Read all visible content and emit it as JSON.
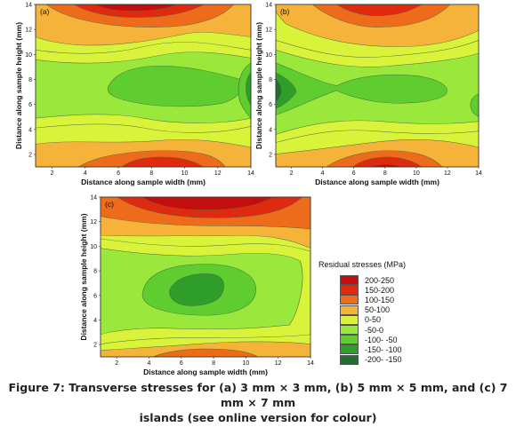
{
  "chart_data": [
    {
      "type": "heatmap",
      "panel_label": "(a)",
      "xlabel": "Distance along sample width (mm)",
      "ylabel": "Distance along sample height (mm)",
      "x_ticks": [
        2,
        4,
        6,
        8,
        10,
        12,
        14
      ],
      "y_ticks": [
        2,
        4,
        6,
        8,
        10,
        12,
        14
      ],
      "xlim": [
        1,
        14
      ],
      "ylim": [
        1,
        14
      ]
    },
    {
      "type": "heatmap",
      "panel_label": "(b)",
      "xlabel": "Distance along sample width (mm)",
      "ylabel": "Distance along sample height (mm)",
      "x_ticks": [
        2,
        4,
        6,
        8,
        10,
        12,
        14
      ],
      "y_ticks": [
        2,
        4,
        6,
        8,
        10,
        12,
        14
      ],
      "xlim": [
        1,
        14
      ],
      "ylim": [
        1,
        14
      ]
    },
    {
      "type": "heatmap",
      "panel_label": "(c)",
      "xlabel": "Distance along sample width (mm)",
      "ylabel": "Distance along sample height (mm)",
      "x_ticks": [
        2,
        4,
        6,
        8,
        10,
        12,
        14
      ],
      "y_ticks": [
        2,
        4,
        6,
        8,
        10,
        12,
        14
      ],
      "xlim": [
        1,
        14
      ],
      "ylim": [
        1,
        14
      ]
    }
  ],
  "legend": {
    "title": "Residual stresses (MPa)",
    "entries": [
      {
        "label": "200-250",
        "color": "#c40d0d"
      },
      {
        "label": "150-200",
        "color": "#e02a10"
      },
      {
        "label": "100-150",
        "color": "#ef6b1c"
      },
      {
        "label": "50-100",
        "color": "#f6b33a"
      },
      {
        "label": "0-50",
        "color": "#d9f23a"
      },
      {
        "label": "-50-0",
        "color": "#9be83c"
      },
      {
        "label": "-100- -50",
        "color": "#5fcd2f"
      },
      {
        "label": "-150- -100",
        "color": "#2e9d2a"
      },
      {
        "label": "-200- -150",
        "color": "#1f6f2e"
      }
    ]
  },
  "caption_lines": [
    "Figure 7: Transverse stresses for (a) 3 mm × 3 mm, (b) 5 mm × 5 mm, and (c) 7 mm × 7 mm",
    "islands (see online version for colour)"
  ]
}
